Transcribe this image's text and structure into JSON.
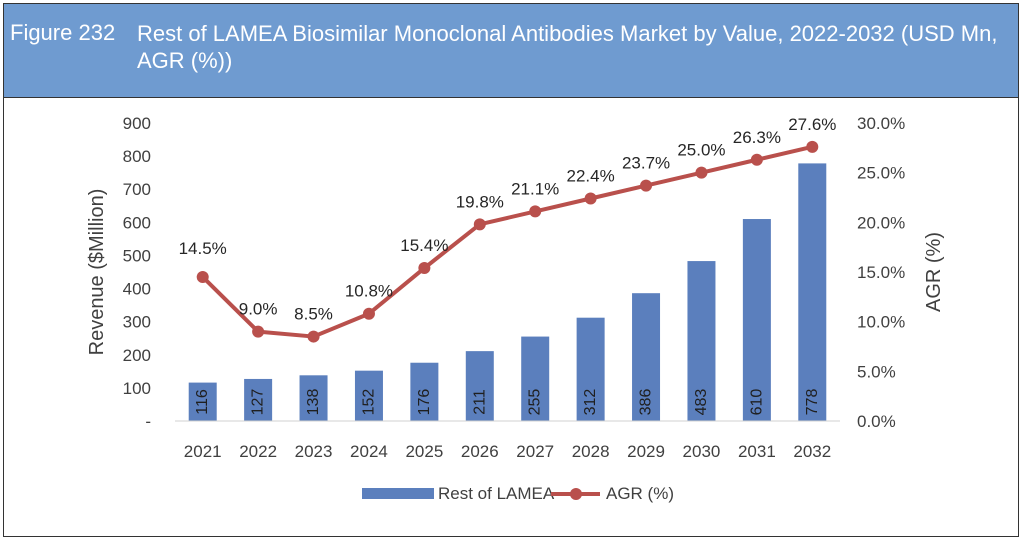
{
  "figure": {
    "label": "Figure 232",
    "title": "Rest of LAMEA Biosimilar Monoclonal Antibodies Market by Value, 2022-2032 (USD Mn, AGR (%))"
  },
  "colors": {
    "header_bg": "#6f9bd0",
    "bar": "#5b7fbd",
    "line": "#b9504c"
  },
  "chart_data": {
    "type": "bar",
    "categories": [
      "2021",
      "2022",
      "2023",
      "2024",
      "2025",
      "2026",
      "2027",
      "2028",
      "2029",
      "2030",
      "2031",
      "2032"
    ],
    "series": [
      {
        "name": "Rest of LAMEA",
        "type": "bar",
        "axis": "left",
        "values": [
          116,
          127,
          138,
          152,
          176,
          211,
          255,
          312,
          386,
          483,
          610,
          778
        ],
        "labels": [
          "116",
          "127",
          "138",
          "152",
          "176",
          "211",
          "255",
          "312",
          "386",
          "483",
          "610",
          "778"
        ]
      },
      {
        "name": "AGR (%)",
        "type": "line",
        "axis": "right",
        "values": [
          14.5,
          9.0,
          8.5,
          10.8,
          15.4,
          19.8,
          21.1,
          22.4,
          23.7,
          25.0,
          26.3,
          27.6
        ],
        "labels": [
          "14.5%",
          "9.0%",
          "8.5%",
          "10.8%",
          "15.4%",
          "19.8%",
          "21.1%",
          "22.4%",
          "23.7%",
          "25.0%",
          "26.3%",
          "27.6%"
        ]
      }
    ],
    "ylabel": "Revenue ($Million)",
    "y2label": "AGR (%)",
    "ylim": [
      0,
      900
    ],
    "y2lim": [
      0,
      30
    ],
    "yticks": [
      "-",
      "100",
      "200",
      "300",
      "400",
      "500",
      "600",
      "700",
      "800",
      "900"
    ],
    "y2ticks": [
      "0.0%",
      "5.0%",
      "10.0%",
      "15.0%",
      "20.0%",
      "25.0%",
      "30.0%"
    ],
    "legend_position": "bottom",
    "grid": false
  }
}
